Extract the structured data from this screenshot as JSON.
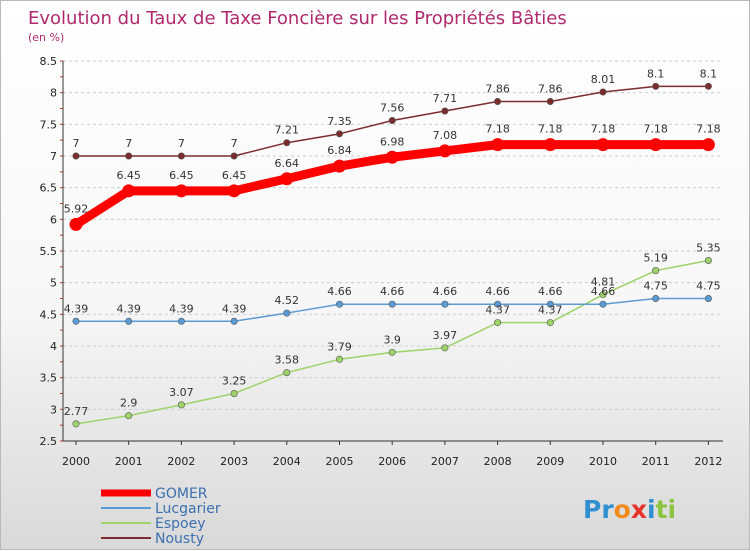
{
  "chart_data": {
    "type": "line",
    "title": "Evolution du Taux de Taxe Foncière sur les Propriétés Bâties",
    "subtitle": "(en %)",
    "x": [
      "2000",
      "2001",
      "2002",
      "2003",
      "2004",
      "2005",
      "2006",
      "2007",
      "2008",
      "2009",
      "2010",
      "2011",
      "2012"
    ],
    "ylim": [
      2.5,
      8.5
    ],
    "yticks": [
      "2.5",
      "3",
      "3.5",
      "4",
      "4.5",
      "5",
      "5.5",
      "6",
      "6.5",
      "7",
      "7.5",
      "8",
      "8.5"
    ],
    "grid": "horizontal dashed",
    "legend_position": "bottom-left",
    "series": [
      {
        "name": "GOMER",
        "color": "#ff0000",
        "values": [
          5.92,
          6.45,
          6.45,
          6.45,
          6.64,
          6.84,
          6.98,
          7.08,
          7.18,
          7.18,
          7.18,
          7.18,
          7.18
        ],
        "labels": [
          "5.92",
          "6.45",
          "6.45",
          "6.45",
          "6.64",
          "6.84",
          "6.98",
          "7.08",
          "7.18",
          "7.18",
          "7.18",
          "7.18",
          "7.18"
        ]
      },
      {
        "name": "Lucgarier",
        "color": "#5b9bd5",
        "values": [
          4.39,
          4.39,
          4.39,
          4.39,
          4.52,
          4.66,
          4.66,
          4.66,
          4.66,
          4.66,
          4.66,
          4.75,
          4.75
        ],
        "labels": [
          "4.39",
          "4.39",
          "4.39",
          "4.39",
          "4.52",
          "4.66",
          "4.66",
          "4.66",
          "4.66",
          "4.66",
          "4.66",
          "4.75",
          "4.75"
        ]
      },
      {
        "name": "Espoey",
        "color": "#9ed36a",
        "values": [
          2.77,
          2.9,
          3.07,
          3.25,
          3.58,
          3.79,
          3.9,
          3.97,
          4.37,
          4.37,
          4.81,
          5.19,
          5.35
        ],
        "labels": [
          "2.77",
          "2.9",
          "3.07",
          "3.25",
          "3.58",
          "3.79",
          "3.9",
          "3.97",
          "4.37",
          "4.37",
          "4.81",
          "5.19",
          "5.35"
        ]
      },
      {
        "name": "Nousty",
        "color": "#7b2c2c",
        "values": [
          7,
          7,
          7,
          7,
          7.21,
          7.35,
          7.56,
          7.71,
          7.86,
          7.86,
          8.01,
          8.1,
          8.1
        ],
        "labels": [
          "7",
          "7",
          "7",
          "7",
          "7.21",
          "7.35",
          "7.56",
          "7.71",
          "7.86",
          "7.86",
          "8.01",
          "8.1",
          "8.1"
        ]
      }
    ]
  },
  "logo": {
    "text": "Proxiti",
    "letters": [
      "P",
      "r",
      "o",
      "x",
      "i",
      "t",
      "i"
    ]
  },
  "colors": {
    "title": "#b0296c",
    "grid": "#cccccc",
    "logo_letters": [
      "#2f8fd0",
      "#2f8fd0",
      "#f08a1c",
      "#e6332a",
      "#2f8fd0",
      "#8bc53f",
      "#8bc53f"
    ]
  }
}
